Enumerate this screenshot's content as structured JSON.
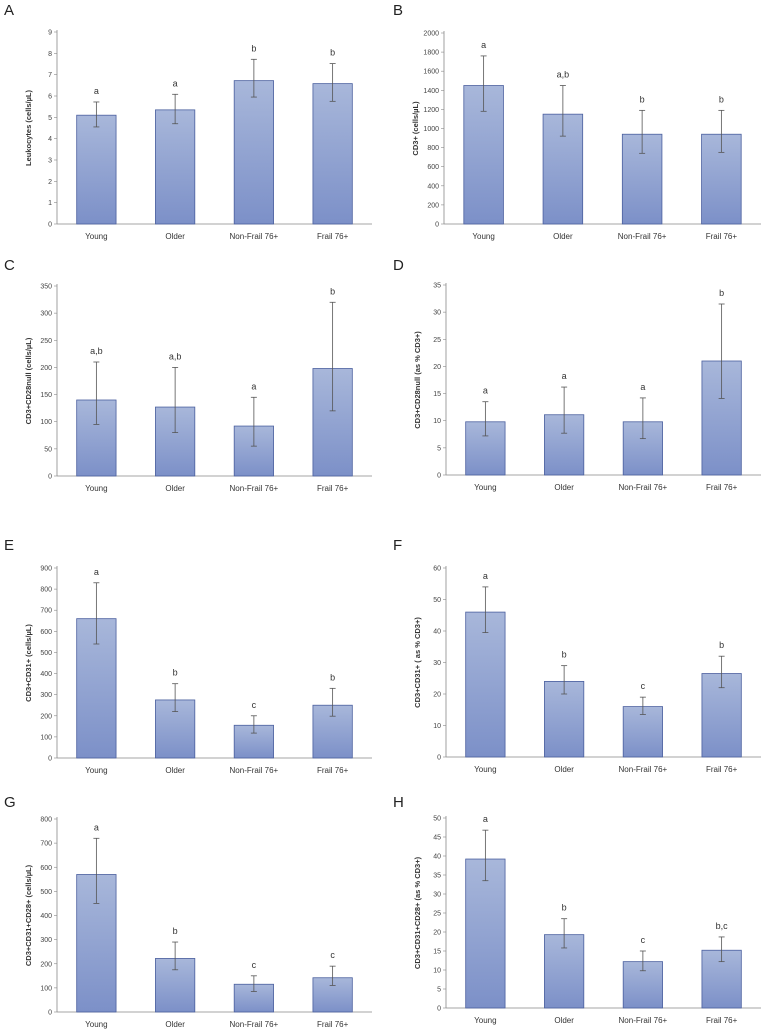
{
  "chart_data": [
    {
      "panel": "A",
      "type": "bar",
      "ylabel": "Leukocytes (cells/µL)",
      "categories": [
        "Young",
        "Older",
        "Non-Frail 76+",
        "Frail 76+"
      ],
      "values": [
        5.1,
        5.35,
        6.72,
        6.58
      ],
      "err_low": [
        4.55,
        4.7,
        5.95,
        5.75
      ],
      "err_high": [
        5.72,
        6.08,
        7.72,
        7.52
      ],
      "sig": [
        "a",
        "a",
        "b",
        "b"
      ],
      "ylim": [
        0,
        9
      ],
      "yticks": [
        "0",
        "1",
        "2",
        "3",
        "4",
        "5",
        "6",
        "7",
        "8",
        "9"
      ]
    },
    {
      "panel": "B",
      "type": "bar",
      "ylabel": "CD3+ (cells/µL)",
      "categories": [
        "Young",
        "Older",
        "Non-Frail 76+",
        "Frail 76+"
      ],
      "values": [
        1450,
        1150,
        940,
        940
      ],
      "err_low": [
        1180,
        920,
        740,
        750
      ],
      "err_high": [
        1760,
        1450,
        1190,
        1190
      ],
      "sig": [
        "a",
        "a,b",
        "b",
        "b"
      ],
      "ylim": [
        0,
        2000
      ],
      "yticks": [
        "0",
        "200",
        "400",
        "600",
        "800",
        "1000",
        "1200",
        "1400",
        "1600",
        "1800",
        "2000"
      ]
    },
    {
      "panel": "C",
      "type": "bar",
      "ylabel": "CD3+CD28null (cells/µL)",
      "categories": [
        "Young",
        "Older",
        "Non-Frail 76+",
        "Frail 76+"
      ],
      "values": [
        140,
        127,
        92,
        198
      ],
      "err_low": [
        95,
        80,
        55,
        120
      ],
      "err_high": [
        210,
        200,
        145,
        320
      ],
      "sig": [
        "a,b",
        "a,b",
        "a",
        "b"
      ],
      "ylim": [
        0,
        350
      ],
      "yticks": [
        "0",
        "50",
        "100",
        "150",
        "200",
        "250",
        "300",
        "350"
      ]
    },
    {
      "panel": "D",
      "type": "bar",
      "ylabel": "CD3+CD28null (as % CD3+)",
      "categories": [
        "Young",
        "Older",
        "Non-Frail 76+",
        "Frail 76+"
      ],
      "values": [
        9.8,
        11.1,
        9.8,
        21
      ],
      "err_low": [
        7.2,
        7.7,
        6.7,
        14.1
      ],
      "err_high": [
        13.5,
        16.2,
        14.2,
        31.5
      ],
      "sig": [
        "a",
        "a",
        "a",
        "b"
      ],
      "ylim": [
        0,
        35
      ],
      "yticks": [
        "0",
        "5",
        "10",
        "15",
        "20",
        "25",
        "30",
        "35"
      ]
    },
    {
      "panel": "E",
      "type": "bar",
      "ylabel": "CD3+CD31+ (cells/µL)",
      "categories": [
        "Young",
        "Older",
        "Non-Frail 76+",
        "Frail 76+"
      ],
      "values": [
        660,
        275,
        155,
        250
      ],
      "err_low": [
        540,
        220,
        118,
        198
      ],
      "err_high": [
        830,
        352,
        200,
        330
      ],
      "sig": [
        "a",
        "b",
        "c",
        "b"
      ],
      "ylim": [
        0,
        900
      ],
      "yticks": [
        "0",
        "100",
        "200",
        "300",
        "400",
        "500",
        "600",
        "700",
        "800",
        "900"
      ]
    },
    {
      "panel": "F",
      "type": "bar",
      "ylabel": "CD3+CD31+ ( as % CD3+)",
      "categories": [
        "Young",
        "Older",
        "Non-Frail 76+",
        "Frail 76+"
      ],
      "values": [
        46,
        24,
        16,
        26.5
      ],
      "err_low": [
        39.5,
        20,
        13.5,
        22
      ],
      "err_high": [
        54,
        29,
        19,
        32
      ],
      "sig": [
        "a",
        "b",
        "c",
        "b"
      ],
      "ylim": [
        0,
        60
      ],
      "yticks": [
        "0",
        "10",
        "20",
        "30",
        "40",
        "50",
        "60"
      ]
    },
    {
      "panel": "G",
      "type": "bar",
      "ylabel": "CD3+CD31+CD28+ (cells/µL)",
      "categories": [
        "Young",
        "Older",
        "Non-Frail 76+",
        "Frail 76+"
      ],
      "values": [
        570,
        222,
        115,
        142
      ],
      "err_low": [
        450,
        175,
        85,
        110
      ],
      "err_high": [
        720,
        290,
        150,
        190
      ],
      "sig": [
        "a",
        "b",
        "c",
        "c"
      ],
      "ylim": [
        0,
        800
      ],
      "yticks": [
        "0",
        "100",
        "200",
        "300",
        "400",
        "500",
        "600",
        "700",
        "800"
      ]
    },
    {
      "panel": "H",
      "type": "bar",
      "ylabel": "CD3+CD31+CD28+ (as % CD3+)",
      "categories": [
        "Young",
        "Older",
        "Non-Frail 76+",
        "Frail 76+"
      ],
      "values": [
        39.2,
        19.3,
        12.2,
        15.2
      ],
      "err_low": [
        33.5,
        15.8,
        9.8,
        12.2
      ],
      "err_high": [
        46.8,
        23.5,
        15,
        18.7
      ],
      "sig": [
        "a",
        "b",
        "c",
        "b,c"
      ],
      "ylim": [
        0,
        50
      ],
      "yticks": [
        "0",
        "5",
        "10",
        "15",
        "20",
        "25",
        "30",
        "35",
        "40",
        "45",
        "50"
      ]
    }
  ],
  "colors": {
    "bar_top": "#a8b7da",
    "bar_bottom": "#7c90c8",
    "bar_stroke": "#4a5f9e"
  }
}
